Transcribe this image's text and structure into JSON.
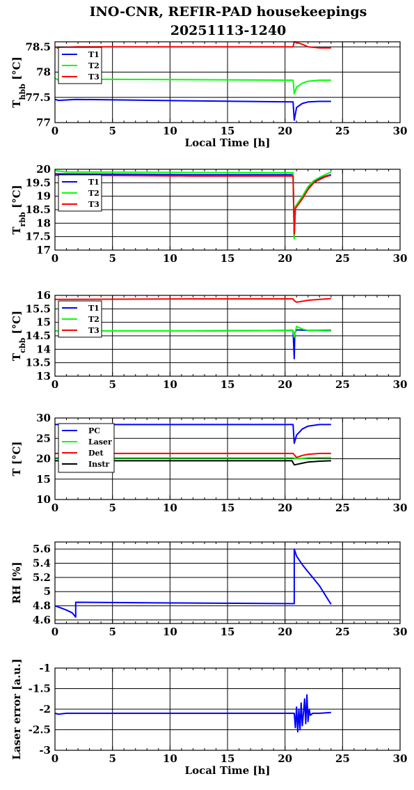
{
  "figure": {
    "title_line1": "INO-CNR, REFIR-PAD housekeepings",
    "title_line2": "20251113-1240"
  },
  "chart_data": [
    {
      "type": "line",
      "ylabel_main": "T",
      "ylabel_sub": "hbb",
      "ylabel_unit": " [°C]",
      "xlabel": "Local Time [h]",
      "xlim": [
        0,
        30
      ],
      "ylim": [
        77,
        78.6
      ],
      "xticks": [
        0,
        5,
        10,
        15,
        20,
        25,
        30
      ],
      "yticks": [
        77,
        77.5,
        78,
        78.5
      ],
      "ytick_labels": [
        "77",
        "77.5",
        "78",
        "78.5"
      ],
      "grid": true,
      "legend_position": "top-left",
      "series": [
        {
          "name": "T1",
          "color": "#0000ff",
          "x": [
            0,
            0.3,
            1.8,
            12,
            20.7,
            20.8,
            21.0,
            21.5,
            22,
            23,
            24
          ],
          "y": [
            77.46,
            77.44,
            77.46,
            77.43,
            77.41,
            77.05,
            77.3,
            77.38,
            77.41,
            77.42,
            77.42
          ]
        },
        {
          "name": "T2",
          "color": "#00ff00",
          "x": [
            0,
            0.4,
            1,
            12,
            20.7,
            20.8,
            21.0,
            21.5,
            22,
            23,
            24
          ],
          "y": [
            77.88,
            77.83,
            77.86,
            77.85,
            77.84,
            77.57,
            77.7,
            77.78,
            77.82,
            77.84,
            77.84
          ]
        },
        {
          "name": "T3",
          "color": "#ff0000",
          "x": [
            0,
            0.2,
            1.8,
            12,
            20.7,
            20.8,
            21.5,
            22,
            23,
            24
          ],
          "y": [
            78.5,
            78.48,
            78.5,
            78.5,
            78.5,
            78.6,
            78.55,
            78.5,
            78.48,
            78.48
          ]
        }
      ]
    },
    {
      "type": "line",
      "ylabel_main": "T",
      "ylabel_sub": "rbb",
      "ylabel_unit": " [°C]",
      "xlabel": "",
      "xlim": [
        0,
        30
      ],
      "ylim": [
        17,
        20
      ],
      "xticks": [
        0,
        5,
        10,
        15,
        20,
        25,
        30
      ],
      "yticks": [
        17,
        17.5,
        18,
        18.5,
        19,
        19.5,
        20
      ],
      "ytick_labels": [
        "17",
        "17.5",
        "18",
        "18.5",
        "19",
        "19.5",
        "20"
      ],
      "grid": true,
      "legend_position": "top-left",
      "series": [
        {
          "name": "T1",
          "color": "#0000ff",
          "x": [
            0,
            12,
            20.7,
            20.8,
            20.9,
            21.5,
            22,
            22.5,
            23,
            23.5,
            24
          ],
          "y": [
            19.83,
            19.8,
            19.8,
            17.45,
            18.6,
            18.95,
            19.3,
            19.52,
            19.65,
            19.74,
            19.8
          ]
        },
        {
          "name": "T2",
          "color": "#00ff00",
          "x": [
            0,
            1,
            12,
            20.7,
            20.8,
            20.9,
            21.5,
            22,
            22.5,
            23,
            23.5,
            24
          ],
          "y": [
            19.95,
            19.9,
            19.88,
            19.87,
            17.42,
            18.62,
            19.0,
            19.35,
            19.58,
            19.7,
            19.8,
            19.9
          ]
        },
        {
          "name": "T3",
          "color": "#ff0000",
          "x": [
            0,
            12,
            20.7,
            20.8,
            20.9,
            21.5,
            22,
            22.5,
            23,
            23.5,
            24
          ],
          "y": [
            19.78,
            19.75,
            19.75,
            17.6,
            18.55,
            18.9,
            19.25,
            19.5,
            19.62,
            19.72,
            19.78
          ]
        }
      ]
    },
    {
      "type": "line",
      "ylabel_main": "T",
      "ylabel_sub": "cbb",
      "ylabel_unit": " [°C]",
      "xlabel": "",
      "xlim": [
        0,
        30
      ],
      "ylim": [
        13,
        16
      ],
      "xticks": [
        0,
        5,
        10,
        15,
        20,
        25,
        30
      ],
      "yticks": [
        13,
        13.5,
        14,
        14.5,
        15,
        15.5,
        16
      ],
      "ytick_labels": [
        "13",
        "13.5",
        "14",
        "14.5",
        "15",
        "15.5",
        "16"
      ],
      "grid": true,
      "legend_position": "top-left",
      "series": [
        {
          "name": "T1",
          "color": "#0000ff",
          "x": [
            0,
            12,
            20.7,
            20.8,
            20.85,
            21,
            22,
            24
          ],
          "y": [
            14.68,
            14.68,
            14.7,
            13.65,
            14.6,
            14.72,
            14.7,
            14.7
          ]
        },
        {
          "name": "T2",
          "color": "#00ff00",
          "x": [
            0,
            12,
            20.7,
            20.8,
            21,
            21.5,
            22,
            24
          ],
          "y": [
            14.68,
            14.68,
            14.7,
            14.45,
            14.85,
            14.75,
            14.7,
            14.68
          ]
        },
        {
          "name": "T3",
          "color": "#ff0000",
          "x": [
            0,
            12,
            20.7,
            20.8,
            21,
            21.5,
            22,
            23,
            24
          ],
          "y": [
            15.85,
            15.87,
            15.87,
            15.8,
            15.75,
            15.78,
            15.82,
            15.85,
            15.88
          ]
        }
      ]
    },
    {
      "type": "line",
      "ylabel_main": "T",
      "ylabel_sub": "",
      "ylabel_unit": " [°C]",
      "xlabel": "",
      "xlim": [
        0,
        30
      ],
      "ylim": [
        10,
        30
      ],
      "xticks": [
        0,
        5,
        10,
        15,
        20,
        25,
        30
      ],
      "yticks": [
        10,
        15,
        20,
        25,
        30
      ],
      "ytick_labels": [
        "10",
        "15",
        "20",
        "25",
        "30"
      ],
      "grid": true,
      "legend_position": "top-left",
      "series": [
        {
          "name": "PC",
          "color": "#0000ff",
          "x": [
            0,
            12,
            20.7,
            20.8,
            21,
            21.5,
            22,
            23,
            24
          ],
          "y": [
            28.4,
            28.4,
            28.4,
            23.8,
            25.8,
            27.3,
            28.0,
            28.4,
            28.4
          ]
        },
        {
          "name": "Laser",
          "color": "#00ff00",
          "x": [
            0,
            12,
            20.7,
            21,
            22,
            24
          ],
          "y": [
            20.2,
            20.2,
            20.2,
            20.0,
            20.2,
            20.3
          ]
        },
        {
          "name": "Det",
          "color": "#ff0000",
          "x": [
            0,
            12,
            20.7,
            21,
            21.5,
            22,
            23,
            24
          ],
          "y": [
            21.3,
            21.3,
            21.3,
            20.3,
            20.8,
            21.1,
            21.3,
            21.3
          ]
        },
        {
          "name": "Instr",
          "color": "#000000",
          "x": [
            0,
            12,
            20.6,
            20.8,
            21.5,
            22,
            23,
            24
          ],
          "y": [
            19.5,
            19.5,
            19.5,
            18.5,
            18.9,
            19.2,
            19.4,
            19.5
          ]
        }
      ]
    },
    {
      "type": "line",
      "ylabel_main": "RH [%]",
      "ylabel_sub": "",
      "ylabel_unit": "",
      "xlabel": "",
      "xlim": [
        0,
        30
      ],
      "ylim": [
        4.55,
        5.7
      ],
      "xticks": [
        0,
        5,
        10,
        15,
        20,
        25,
        30
      ],
      "yticks": [
        4.6,
        4.8,
        5,
        5.2,
        5.4,
        5.6
      ],
      "ytick_labels": [
        "4.6",
        "4.8",
        "5",
        "5.2",
        "5.4",
        "5.6"
      ],
      "grid": true,
      "legend_position": "",
      "series": [
        {
          "name": "",
          "color": "#0000ff",
          "x": [
            0,
            0.5,
            1,
            1.5,
            1.8,
            1.8,
            10,
            20.8,
            20.8,
            21,
            21.5,
            22,
            22.5,
            23,
            23.5,
            24
          ],
          "y": [
            4.8,
            4.77,
            4.74,
            4.7,
            4.64,
            4.85,
            4.84,
            4.83,
            5.6,
            5.5,
            5.38,
            5.28,
            5.18,
            5.08,
            4.95,
            4.82
          ]
        }
      ]
    },
    {
      "type": "line",
      "ylabel_main": "Laser error [a.u.]",
      "ylabel_sub": "",
      "ylabel_unit": "",
      "xlabel": "Local Time [h]",
      "xlim": [
        0,
        30
      ],
      "ylim": [
        -3,
        -1
      ],
      "xticks": [
        0,
        5,
        10,
        15,
        20,
        25,
        30
      ],
      "yticks": [
        -3,
        -2.5,
        -2,
        -1.5,
        -1
      ],
      "ytick_labels": [
        "-3",
        "-2.5",
        "-2",
        "-1.5",
        "-1"
      ],
      "grid": true,
      "legend_position": "",
      "series": [
        {
          "name": "",
          "color": "#0000ff",
          "x": [
            0,
            0.3,
            1,
            20.8,
            20.9,
            21.0,
            21.1,
            21.2,
            21.3,
            21.4,
            21.5,
            21.6,
            21.7,
            21.8,
            21.9,
            22.0,
            22.1,
            22.2,
            22.4,
            23,
            24
          ],
          "y": [
            -2.1,
            -2.12,
            -2.1,
            -2.1,
            -2.45,
            -1.95,
            -2.55,
            -2.0,
            -2.5,
            -1.85,
            -2.4,
            -2.1,
            -1.75,
            -2.35,
            -1.65,
            -2.3,
            -2.0,
            -2.15,
            -2.1,
            -2.1,
            -2.08
          ]
        }
      ]
    }
  ]
}
